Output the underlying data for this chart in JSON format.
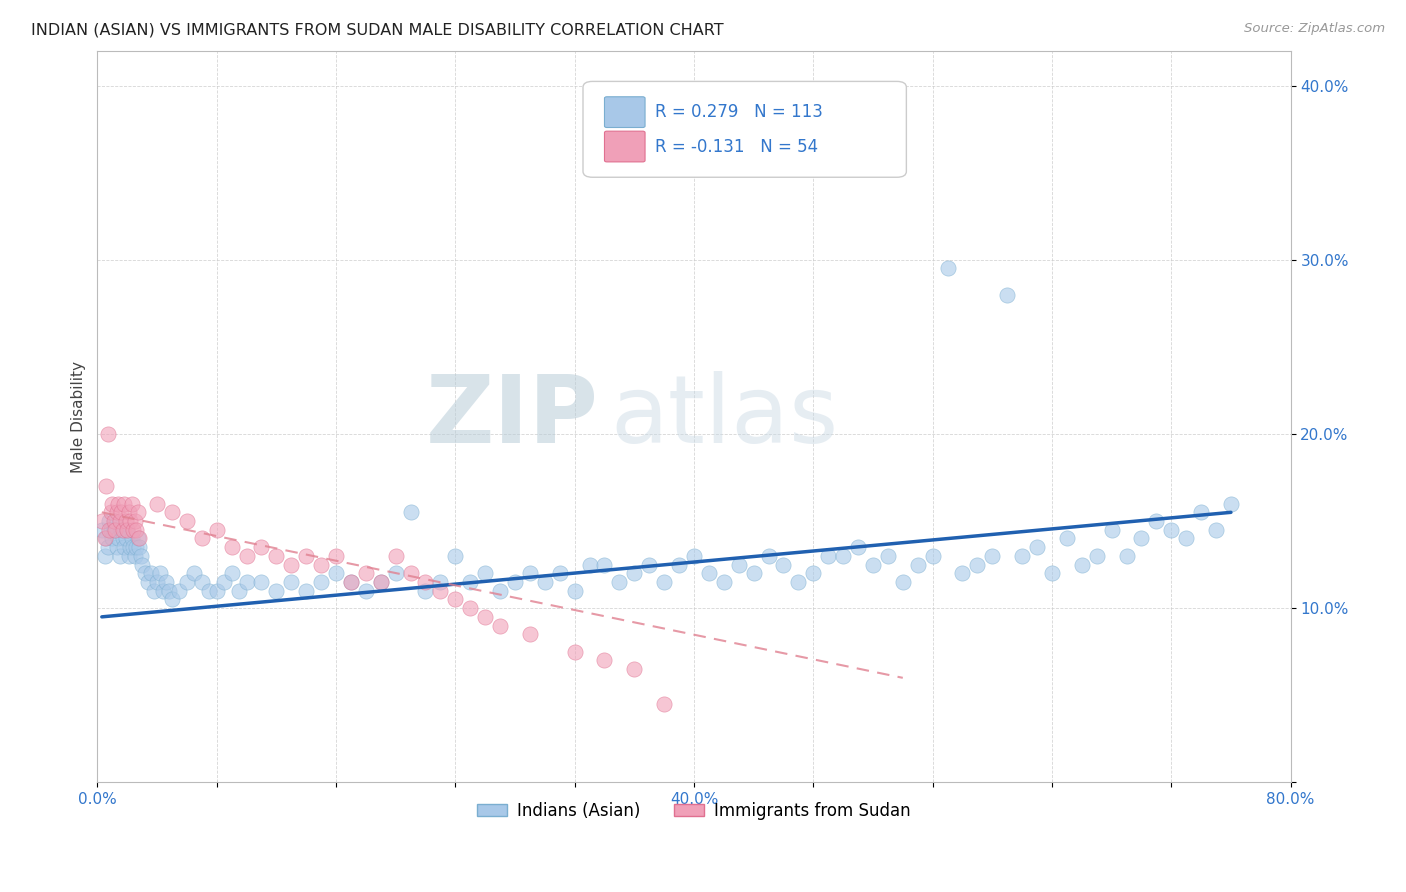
{
  "title": "INDIAN (ASIAN) VS IMMIGRANTS FROM SUDAN MALE DISABILITY CORRELATION CHART",
  "source": "Source: ZipAtlas.com",
  "ylabel": "Male Disability",
  "xlim": [
    0.0,
    0.8
  ],
  "ylim": [
    0.0,
    0.42
  ],
  "yticks": [
    0.0,
    0.1,
    0.2,
    0.3,
    0.4
  ],
  "ytick_labels": [
    "",
    "10.0%",
    "20.0%",
    "30.0%",
    "40.0%"
  ],
  "xtick_labels": [
    "0.0%",
    "",
    "",
    "",
    "",
    "40.0%",
    "",
    "",
    "",
    "",
    "80.0%"
  ],
  "xticks": [
    0.0,
    0.08,
    0.16,
    0.24,
    0.32,
    0.4,
    0.48,
    0.56,
    0.64,
    0.72,
    0.8
  ],
  "legend_r1": "R = 0.279",
  "legend_n1": "N = 113",
  "legend_r2": "R = -0.131",
  "legend_n2": "N = 54",
  "series1_color": "#a8c8e8",
  "series2_color": "#f0a0b8",
  "series1_edge": "#7aaed0",
  "series2_edge": "#e07090",
  "series1_label": "Indians (Asian)",
  "series2_label": "Immigrants from Sudan",
  "watermark": "ZIPatlas",
  "series1_x": [
    0.003,
    0.005,
    0.006,
    0.007,
    0.008,
    0.009,
    0.01,
    0.011,
    0.012,
    0.013,
    0.014,
    0.015,
    0.016,
    0.017,
    0.018,
    0.019,
    0.02,
    0.021,
    0.022,
    0.023,
    0.024,
    0.025,
    0.026,
    0.027,
    0.028,
    0.029,
    0.03,
    0.032,
    0.034,
    0.036,
    0.038,
    0.04,
    0.042,
    0.044,
    0.046,
    0.048,
    0.05,
    0.055,
    0.06,
    0.065,
    0.07,
    0.075,
    0.08,
    0.085,
    0.09,
    0.095,
    0.1,
    0.11,
    0.12,
    0.13,
    0.14,
    0.15,
    0.16,
    0.17,
    0.18,
    0.19,
    0.2,
    0.21,
    0.22,
    0.23,
    0.24,
    0.25,
    0.26,
    0.27,
    0.28,
    0.29,
    0.3,
    0.31,
    0.32,
    0.33,
    0.34,
    0.35,
    0.36,
    0.37,
    0.38,
    0.39,
    0.4,
    0.41,
    0.42,
    0.43,
    0.44,
    0.45,
    0.46,
    0.47,
    0.48,
    0.49,
    0.5,
    0.51,
    0.52,
    0.53,
    0.54,
    0.55,
    0.56,
    0.57,
    0.58,
    0.59,
    0.6,
    0.61,
    0.62,
    0.63,
    0.64,
    0.65,
    0.66,
    0.67,
    0.68,
    0.69,
    0.7,
    0.71,
    0.72,
    0.73,
    0.74,
    0.75,
    0.76
  ],
  "series1_y": [
    0.145,
    0.13,
    0.14,
    0.135,
    0.15,
    0.145,
    0.14,
    0.145,
    0.15,
    0.135,
    0.14,
    0.13,
    0.145,
    0.14,
    0.135,
    0.14,
    0.145,
    0.13,
    0.135,
    0.14,
    0.135,
    0.13,
    0.135,
    0.14,
    0.135,
    0.13,
    0.125,
    0.12,
    0.115,
    0.12,
    0.11,
    0.115,
    0.12,
    0.11,
    0.115,
    0.11,
    0.105,
    0.11,
    0.115,
    0.12,
    0.115,
    0.11,
    0.11,
    0.115,
    0.12,
    0.11,
    0.115,
    0.115,
    0.11,
    0.115,
    0.11,
    0.115,
    0.12,
    0.115,
    0.11,
    0.115,
    0.12,
    0.155,
    0.11,
    0.115,
    0.13,
    0.115,
    0.12,
    0.11,
    0.115,
    0.12,
    0.115,
    0.12,
    0.11,
    0.125,
    0.125,
    0.115,
    0.12,
    0.125,
    0.115,
    0.125,
    0.13,
    0.12,
    0.115,
    0.125,
    0.12,
    0.13,
    0.125,
    0.115,
    0.12,
    0.13,
    0.13,
    0.135,
    0.125,
    0.13,
    0.115,
    0.125,
    0.13,
    0.295,
    0.12,
    0.125,
    0.13,
    0.28,
    0.13,
    0.135,
    0.12,
    0.14,
    0.125,
    0.13,
    0.145,
    0.13,
    0.14,
    0.15,
    0.145,
    0.14,
    0.155,
    0.145,
    0.16
  ],
  "series2_x": [
    0.003,
    0.005,
    0.006,
    0.007,
    0.008,
    0.009,
    0.01,
    0.011,
    0.012,
    0.013,
    0.014,
    0.015,
    0.016,
    0.017,
    0.018,
    0.019,
    0.02,
    0.021,
    0.022,
    0.023,
    0.024,
    0.025,
    0.026,
    0.027,
    0.028,
    0.04,
    0.05,
    0.06,
    0.07,
    0.08,
    0.09,
    0.1,
    0.11,
    0.12,
    0.13,
    0.14,
    0.15,
    0.16,
    0.17,
    0.18,
    0.19,
    0.2,
    0.21,
    0.22,
    0.23,
    0.24,
    0.25,
    0.26,
    0.27,
    0.29,
    0.32,
    0.34,
    0.36,
    0.38
  ],
  "series2_y": [
    0.15,
    0.14,
    0.17,
    0.2,
    0.145,
    0.155,
    0.16,
    0.15,
    0.145,
    0.155,
    0.16,
    0.15,
    0.155,
    0.145,
    0.16,
    0.15,
    0.145,
    0.155,
    0.15,
    0.16,
    0.145,
    0.15,
    0.145,
    0.155,
    0.14,
    0.16,
    0.155,
    0.15,
    0.14,
    0.145,
    0.135,
    0.13,
    0.135,
    0.13,
    0.125,
    0.13,
    0.125,
    0.13,
    0.115,
    0.12,
    0.115,
    0.13,
    0.12,
    0.115,
    0.11,
    0.105,
    0.1,
    0.095,
    0.09,
    0.085,
    0.075,
    0.07,
    0.065,
    0.045
  ],
  "trend1_color": "#2060b0",
  "trend2_color": "#e08090",
  "trend1_x0": 0.003,
  "trend1_x1": 0.76,
  "trend1_y0": 0.095,
  "trend1_y1": 0.155,
  "trend2_x0": 0.003,
  "trend2_x1": 0.54,
  "trend2_y0": 0.155,
  "trend2_y1": 0.06
}
